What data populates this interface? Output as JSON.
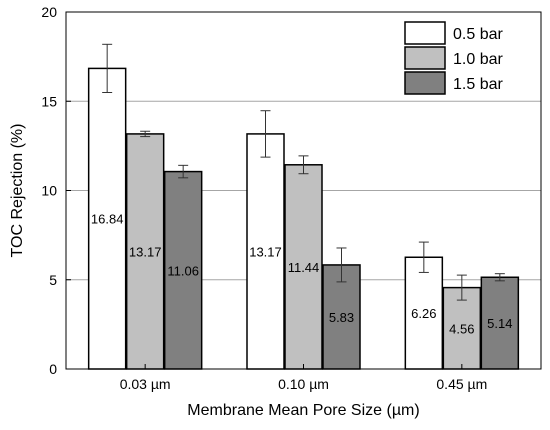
{
  "chart_data": {
    "type": "bar",
    "xlabel": "Membrane Mean Pore Size (µm)",
    "ylabel": "TOC Rejection (%)",
    "ylim": [
      0,
      20
    ],
    "yticks": [
      0,
      5,
      10,
      15,
      20
    ],
    "grid": "horizontal",
    "legend_position": "top-right",
    "categories": [
      "0.03 µm",
      "0.10 µm",
      "0.45 µm"
    ],
    "series": [
      {
        "name": "0.5 bar",
        "color": "#ffffff",
        "values": [
          16.84,
          13.17,
          6.26
        ],
        "labels": [
          "16.84",
          "13.17",
          "6.26"
        ],
        "errors": [
          1.35,
          1.3,
          0.85
        ]
      },
      {
        "name": "1.0 bar",
        "color": "#c0c0c0",
        "values": [
          13.17,
          11.44,
          4.56
        ],
        "labels": [
          "13.17",
          "11.44",
          "4.56"
        ],
        "errors": [
          0.15,
          0.5,
          0.7
        ]
      },
      {
        "name": "1.5 bar",
        "color": "#808080",
        "values": [
          11.06,
          5.83,
          5.14
        ],
        "labels": [
          "11.06",
          "5.83",
          "5.14"
        ],
        "errors": [
          0.35,
          0.95,
          0.2
        ]
      }
    ]
  }
}
